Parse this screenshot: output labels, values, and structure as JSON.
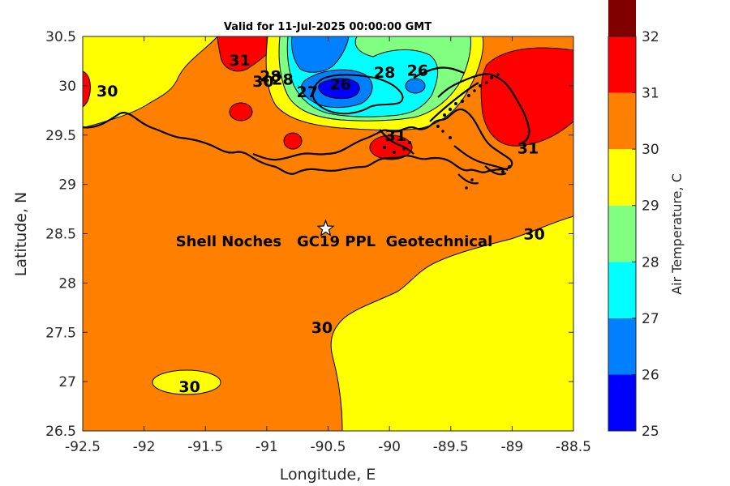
{
  "title": "Valid for 11-Jul-2025 00:00:00 GMT",
  "chart_data": {
    "type": "contour-map",
    "xlabel": "Longitude, E",
    "ylabel": "Latitude, N",
    "xlim": [
      -92.5,
      -88.5
    ],
    "ylim": [
      26.5,
      30.5
    ],
    "xticks": [
      "-92.5",
      "-92",
      "-91.5",
      "-91",
      "-90.5",
      "-90",
      "-89.5",
      "-89",
      "-88.5"
    ],
    "yticks": [
      "26.5",
      "27",
      "27.5",
      "28",
      "28.5",
      "29",
      "29.5",
      "30",
      "30.5"
    ],
    "colorbar": {
      "label": "Air Temperature, C",
      "levels": [
        25,
        26,
        27,
        28,
        29,
        30,
        31,
        32
      ],
      "tick_labels": [
        "25",
        "26",
        "27",
        "28",
        "29",
        "30",
        "31",
        "32"
      ],
      "colors": [
        "#0000ff",
        "#0080ff",
        "#00ffff",
        "#80ff80",
        "#ffff00",
        "#ff8000",
        "#ff0000",
        "#800000"
      ]
    },
    "contour_labels": [
      {
        "text": "30",
        "lon": -92.3,
        "lat": 29.95
      },
      {
        "text": "31",
        "lon": -91.22,
        "lat": 30.26
      },
      {
        "text": "28",
        "lon": -90.97,
        "lat": 30.1
      },
      {
        "text": "30",
        "lon": -91.03,
        "lat": 30.05
      },
      {
        "text": "28",
        "lon": -90.87,
        "lat": 30.07
      },
      {
        "text": "27",
        "lon": -90.67,
        "lat": 29.94
      },
      {
        "text": "26",
        "lon": -90.4,
        "lat": 30.02
      },
      {
        "text": "28",
        "lon": -90.04,
        "lat": 30.14
      },
      {
        "text": "26",
        "lon": -89.77,
        "lat": 30.16
      },
      {
        "text": "31",
        "lon": -89.95,
        "lat": 29.5
      },
      {
        "text": "31",
        "lon": -88.87,
        "lat": 29.37
      },
      {
        "text": "30",
        "lon": -88.82,
        "lat": 28.5
      },
      {
        "text": "30",
        "lon": -90.55,
        "lat": 27.55
      },
      {
        "text": "30",
        "lon": -91.63,
        "lat": 26.95
      }
    ],
    "site": {
      "name": "Shell Noches   GC19 PPL  Geotechnical",
      "lon": -90.52,
      "lat": 28.55
    }
  }
}
